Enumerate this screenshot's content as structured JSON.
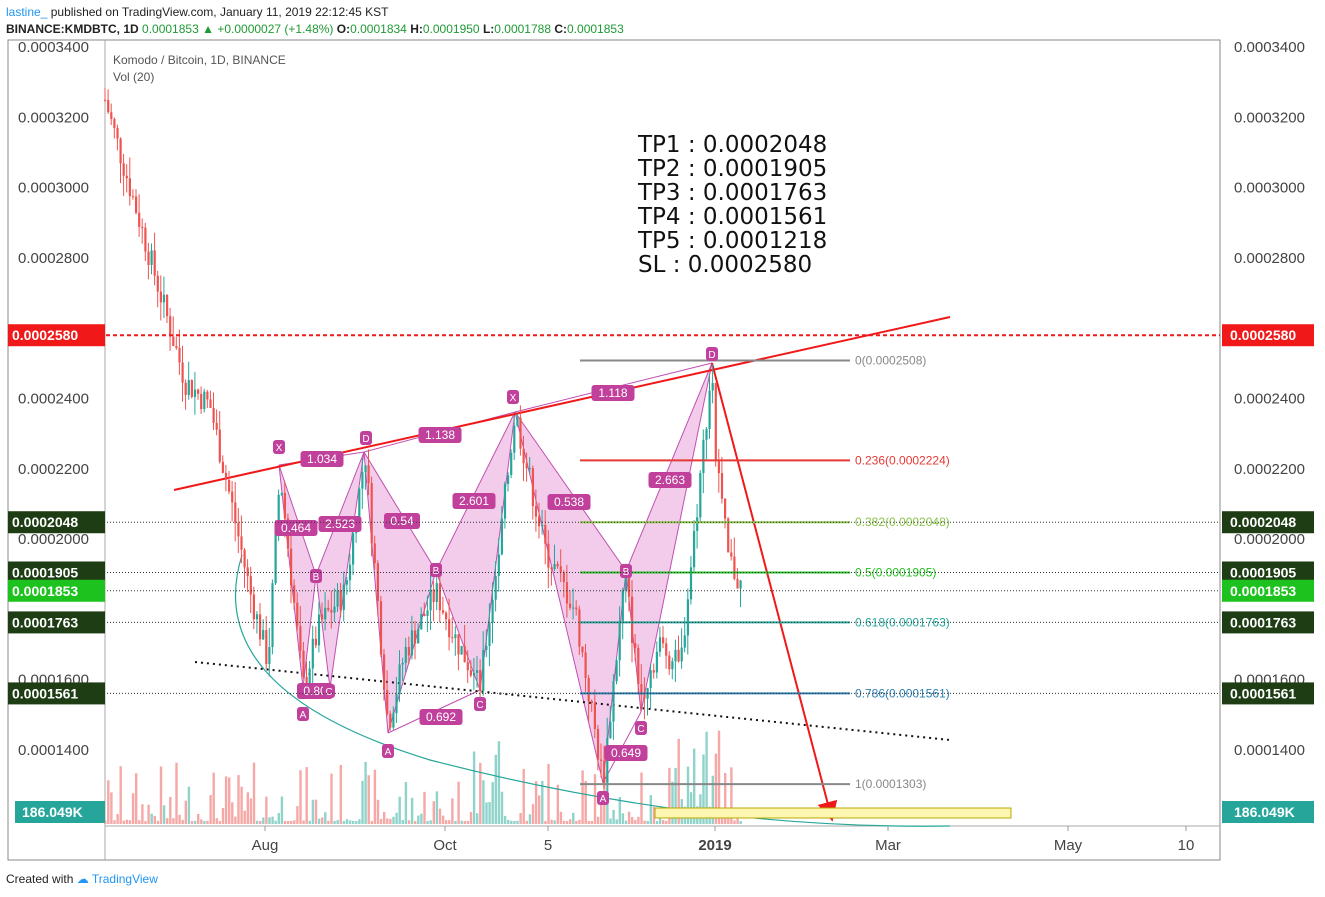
{
  "header": {
    "user": "lastine_",
    "published": "published on TradingView.com, January 11, 2019 22:12:45 KST",
    "symbol": "BINANCE:KMDBTC, 1D",
    "last": "0.0001853",
    "change": "+0.0000027 (+1.48%)",
    "o_label": "O:",
    "o": "0.0001834",
    "h_label": "H:",
    "h": "0.0001950",
    "l_label": "L:",
    "l": "0.0001788",
    "c_label": "C:",
    "c": "0.0001853"
  },
  "legend": {
    "title": "Komodo / Bitcoin, 1D, BINANCE",
    "volume": "Vol (20)"
  },
  "footer": {
    "created_with": "Created with",
    "brand": "TradingView"
  },
  "chart_data": {
    "type": "candlestick",
    "ylim": [
      0.000121,
      0.000342
    ],
    "y_ticks": [
      "0.0003400",
      "0.0003200",
      "0.0003000",
      "0.0002800",
      "0.0002400",
      "0.0002200",
      "0.0002000",
      "0.0001600",
      "0.0001400"
    ],
    "x_ticks": [
      "Aug",
      "Oct",
      "5",
      "2019",
      "Mar",
      "May",
      "10"
    ],
    "price_tags": [
      {
        "value": "0.0002580",
        "color": "#f01818"
      },
      {
        "value": "0.0002048",
        "color": "#1e3d14"
      },
      {
        "value": "0.0001905",
        "color": "#1e3d14"
      },
      {
        "value": "0.0001853",
        "color": "#1ec21e"
      },
      {
        "value": "0.0001763",
        "color": "#1e3d14"
      },
      {
        "value": "0.0001561",
        "color": "#1e3d14"
      }
    ],
    "volume_tag": "186.049K",
    "fib_levels": [
      {
        "label": "0(0.0002508)",
        "price": 0.0002508,
        "color": "#888888"
      },
      {
        "label": "0.236(0.0002224)",
        "price": 0.0002224,
        "color": "#e53935"
      },
      {
        "label": "0.382(0.0002048)",
        "price": 0.0002048,
        "color": "#8bc34a"
      },
      {
        "label": "0.5(0.0001905)",
        "price": 0.0001905,
        "color": "#26c026"
      },
      {
        "label": "0.618(0.0001763)",
        "price": 0.0001763,
        "color": "#26a69a"
      },
      {
        "label": "0.786(0.0001561)",
        "price": 0.0001561,
        "color": "#2e7fb0"
      },
      {
        "label": "1(0.0001303)",
        "price": 0.0001303,
        "color": "#888888"
      }
    ],
    "targets": [
      "TP1 : 0.0002048",
      "TP2 : 0.0001905",
      "TP3 : 0.0001763",
      "TP4 : 0.0001561",
      "TP5 : 0.0001218",
      "SL : 0.0002580"
    ],
    "ratios": [
      "1.034",
      "1.138",
      "1.118",
      "0.464",
      "2.523",
      "0.54",
      "2.601",
      "0.538",
      "2.663",
      "0.692",
      "0.80",
      "0.649"
    ],
    "points": [
      "X",
      "D",
      "X",
      "D",
      "B",
      "B",
      "B",
      "A",
      "C",
      "A",
      "C",
      "A",
      "C"
    ]
  },
  "colors": {
    "red": "#f01818",
    "pattern_fill": "#e38fd0",
    "pattern_stroke": "#c050b0",
    "up": "#26a69a",
    "down": "#ef5350",
    "ratio_bg": "#c0409c"
  }
}
